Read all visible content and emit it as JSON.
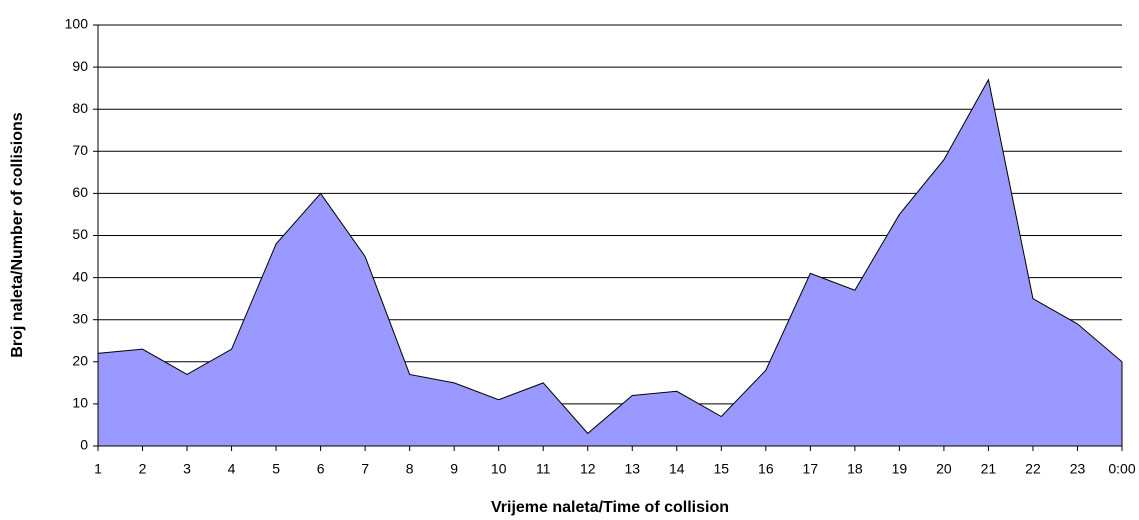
{
  "chart_data": {
    "type": "area",
    "x_label": "Vrijeme naleta/Time of collision",
    "y_label": "Broj naleta/Number of collisions",
    "categories": [
      "1",
      "2",
      "3",
      "4",
      "5",
      "6",
      "7",
      "8",
      "9",
      "10",
      "11",
      "12",
      "13",
      "14",
      "15",
      "16",
      "17",
      "18",
      "19",
      "20",
      "21",
      "22",
      "23",
      "0:00"
    ],
    "values": [
      22,
      23,
      17,
      23,
      48,
      60,
      45,
      17,
      15,
      11,
      15,
      3,
      12,
      13,
      7,
      18,
      41,
      37,
      55,
      68,
      87,
      35,
      29,
      20
    ],
    "color": "#9999ff",
    "ylim": [
      0,
      100
    ],
    "yticks": [
      0,
      10,
      20,
      30,
      40,
      50,
      60,
      70,
      80,
      90,
      100
    ],
    "grid": true
  }
}
